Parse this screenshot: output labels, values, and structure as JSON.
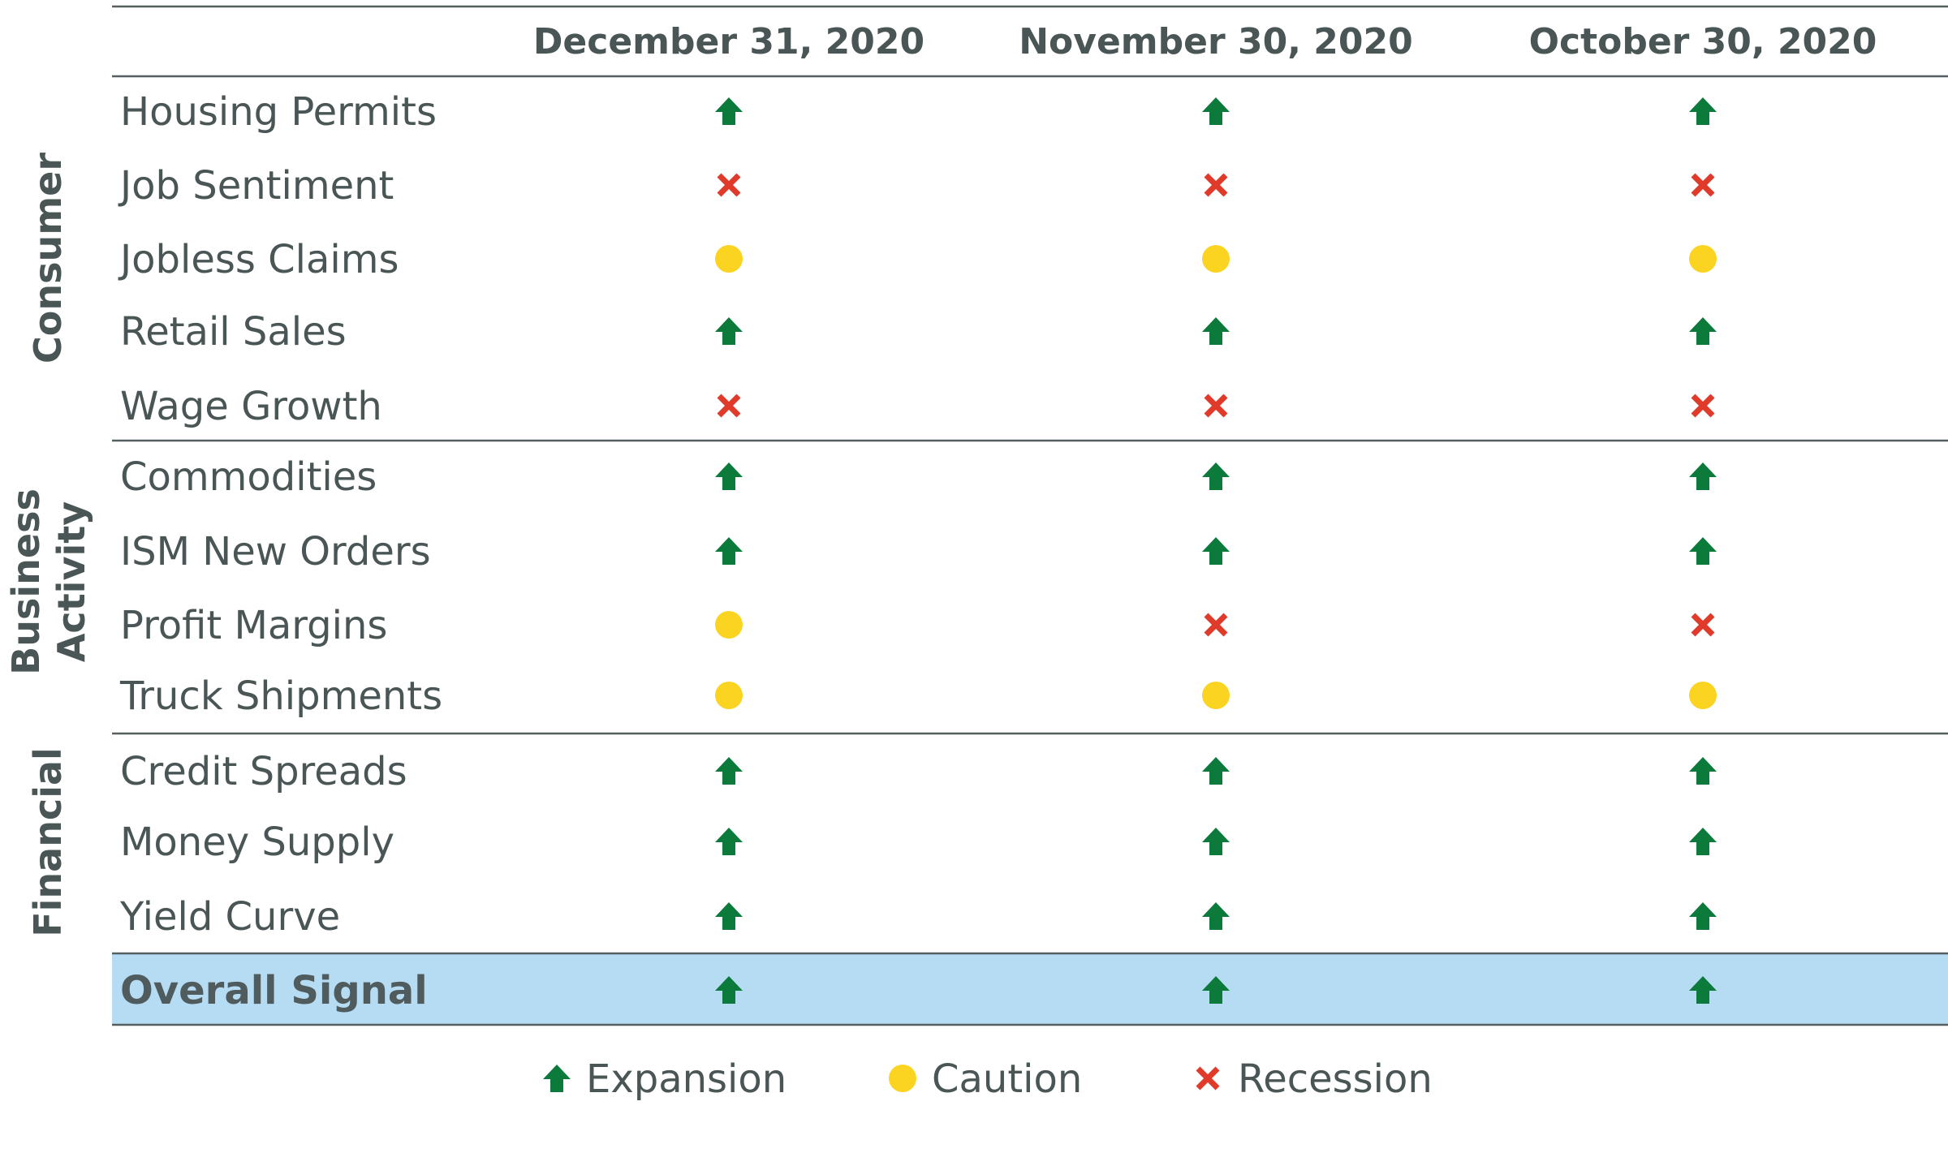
{
  "chart_data": {
    "type": "table",
    "columns": [
      "December 31, 2020",
      "November 30, 2020",
      "October 30, 2020"
    ],
    "groups": [
      {
        "name": "Consumer",
        "rows": [
          {
            "label": "Housing Permits",
            "signals": [
              "expansion",
              "expansion",
              "expansion"
            ]
          },
          {
            "label": "Job Sentiment",
            "signals": [
              "recession",
              "recession",
              "recession"
            ]
          },
          {
            "label": "Jobless Claims",
            "signals": [
              "caution",
              "caution",
              "caution"
            ]
          },
          {
            "label": "Retail Sales",
            "signals": [
              "expansion",
              "expansion",
              "expansion"
            ]
          },
          {
            "label": "Wage Growth",
            "signals": [
              "recession",
              "recession",
              "recession"
            ]
          }
        ]
      },
      {
        "name_lines": [
          "Business",
          "Activity"
        ],
        "rows": [
          {
            "label": "Commodities",
            "signals": [
              "expansion",
              "expansion",
              "expansion"
            ]
          },
          {
            "label": "ISM New Orders",
            "signals": [
              "expansion",
              "expansion",
              "expansion"
            ]
          },
          {
            "label": "Profit Margins",
            "signals": [
              "caution",
              "recession",
              "recession"
            ]
          },
          {
            "label": "Truck Shipments",
            "signals": [
              "caution",
              "caution",
              "caution"
            ]
          }
        ]
      },
      {
        "name": "Financial",
        "rows": [
          {
            "label": "Credit Spreads",
            "signals": [
              "expansion",
              "expansion",
              "expansion"
            ]
          },
          {
            "label": "Money Supply",
            "signals": [
              "expansion",
              "expansion",
              "expansion"
            ]
          },
          {
            "label": "Yield Curve",
            "signals": [
              "expansion",
              "expansion",
              "expansion"
            ]
          }
        ]
      }
    ],
    "overall": {
      "label": "Overall Signal",
      "signals": [
        "expansion",
        "expansion",
        "expansion"
      ]
    },
    "legend": [
      {
        "key": "expansion",
        "label": "Expansion",
        "icon": "up-arrow-icon"
      },
      {
        "key": "caution",
        "label": "Caution",
        "icon": "circle-icon"
      },
      {
        "key": "recession",
        "label": "Recession",
        "icon": "x-icon"
      }
    ],
    "colors": {
      "expansion": "#0b7a3b",
      "caution": "#fbd321",
      "recession": "#e03a2a",
      "overall_row_bg": "#b6dcf4"
    }
  }
}
